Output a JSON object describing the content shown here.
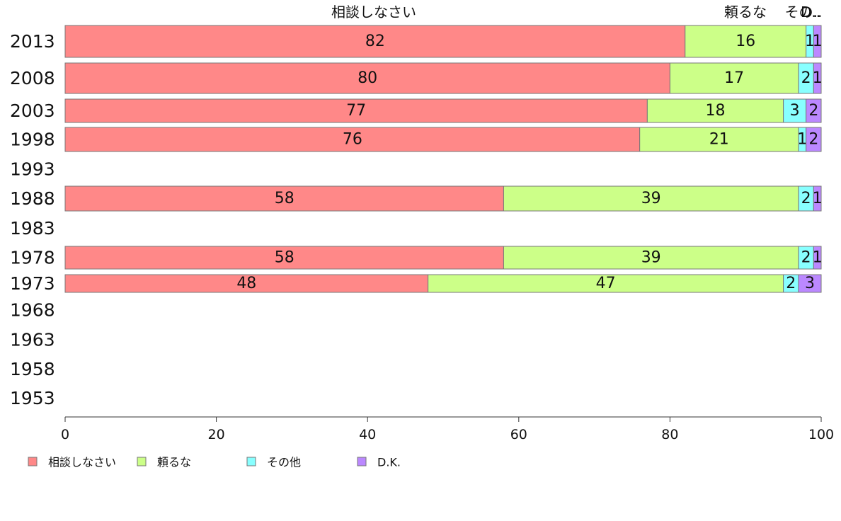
{
  "chart_data": {
    "type": "bar",
    "orientation": "horizontal",
    "stacked": true,
    "years": [
      "2013",
      "2008",
      "2003",
      "1998",
      "1993",
      "1988",
      "1983",
      "1978",
      "1973",
      "1968",
      "1963",
      "1958",
      "1953"
    ],
    "series": [
      {
        "name": "相談しなさい",
        "color": "#ff8888",
        "values": [
          82,
          80,
          77,
          76,
          null,
          58,
          null,
          58,
          48,
          null,
          null,
          null,
          null
        ]
      },
      {
        "name": "頼るな",
        "color": "#ccff88",
        "values": [
          16,
          17,
          18,
          21,
          null,
          39,
          null,
          39,
          47,
          null,
          null,
          null,
          null
        ]
      },
      {
        "name": "その他",
        "color": "#88ffff",
        "values": [
          1,
          2,
          3,
          1,
          null,
          2,
          null,
          2,
          2,
          null,
          null,
          null,
          null
        ]
      },
      {
        "name": "D.K.",
        "color": "#bb88ff",
        "values": [
          1,
          1,
          2,
          2,
          null,
          1,
          null,
          1,
          3,
          null,
          null,
          null,
          null
        ]
      }
    ],
    "column_headers": [
      "相談しなさい",
      "頼るな",
      "その..",
      "D.."
    ],
    "xlim": [
      0,
      100
    ],
    "xticks": [
      "0",
      "20",
      "40",
      "60",
      "80",
      "100"
    ],
    "legend_position": "bottom"
  }
}
